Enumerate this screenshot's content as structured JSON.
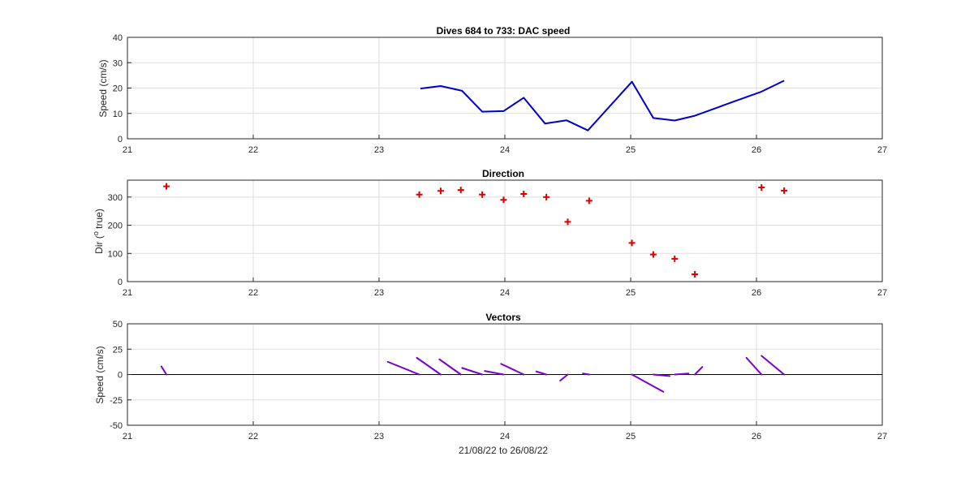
{
  "chart_data": [
    {
      "type": "line",
      "title": "Dives 684 to 733: DAC speed",
      "xlabel": "",
      "ylabel": "Speed (cm/s)",
      "xlim": [
        21,
        27
      ],
      "ylim": [
        0,
        40
      ],
      "xticks": [
        21,
        22,
        23,
        24,
        25,
        26,
        27
      ],
      "yticks": [
        0,
        10,
        20,
        30,
        40
      ],
      "grid": true,
      "color": "#0000cc",
      "series": [
        {
          "x": [
            23.33,
            23.49,
            23.66,
            23.82,
            23.99,
            24.15,
            24.32,
            24.49,
            24.66,
            25.01,
            25.18,
            25.35,
            25.51,
            25.81,
            26.04,
            26.22
          ],
          "y": [
            19.8,
            20.8,
            18.9,
            10.7,
            10.9,
            16.2,
            6.0,
            7.3,
            3.3,
            22.5,
            8.2,
            7.2,
            9.1,
            14.5,
            18.6,
            22.9
          ]
        }
      ]
    },
    {
      "type": "scatter",
      "title": "Direction",
      "xlabel": "",
      "ylabel": "Dir (",
      "ylabel_sup": "o",
      "ylabel_tail": " true)",
      "xlim": [
        21,
        27
      ],
      "ylim": [
        0,
        360
      ],
      "xticks": [
        21,
        22,
        23,
        24,
        25,
        26,
        27
      ],
      "yticks": [
        0,
        100,
        200,
        300
      ],
      "grid": true,
      "marker": "+",
      "color": "#dd0000",
      "series": [
        {
          "x": [
            21.31,
            23.32,
            23.49,
            23.65,
            23.82,
            23.99,
            24.15,
            24.33,
            24.5,
            24.67,
            25.01,
            25.18,
            25.35,
            25.51,
            26.04,
            26.22
          ],
          "y": [
            338,
            309,
            322,
            325,
            309,
            290,
            311,
            300,
            212,
            287,
            137,
            96,
            81,
            26,
            334,
            323
          ]
        }
      ]
    },
    {
      "type": "vector",
      "title": "Vectors",
      "xlabel": "21/08/22 to 26/08/22",
      "ylabel": "Speed (cm/s)",
      "xlim": [
        21,
        27
      ],
      "ylim": [
        -50,
        50
      ],
      "xticks": [
        21,
        22,
        23,
        24,
        25,
        26,
        27
      ],
      "yticks": [
        -50,
        -25,
        0,
        25,
        50
      ],
      "grid": true,
      "color": "#7a00cc",
      "zero_line": true,
      "vectors": [
        {
          "x": [
            21.31,
            21.27
          ],
          "y": [
            0,
            8
          ]
        },
        {
          "x": [
            23.32,
            23.07
          ],
          "y": [
            0,
            12.5
          ]
        },
        {
          "x": [
            23.49,
            23.3
          ],
          "y": [
            0,
            16.5
          ]
        },
        {
          "x": [
            23.65,
            23.48
          ],
          "y": [
            0,
            15.0
          ]
        },
        {
          "x": [
            23.82,
            23.66
          ],
          "y": [
            0,
            6.5
          ]
        },
        {
          "x": [
            23.99,
            23.84
          ],
          "y": [
            0,
            3.5
          ]
        },
        {
          "x": [
            24.15,
            23.97
          ],
          "y": [
            0,
            10.5
          ]
        },
        {
          "x": [
            24.33,
            24.25
          ],
          "y": [
            0,
            3.0
          ]
        },
        {
          "x": [
            24.5,
            24.44
          ],
          "y": [
            0,
            -6.0
          ]
        },
        {
          "x": [
            24.67,
            24.62
          ],
          "y": [
            0,
            1.0
          ]
        },
        {
          "x": [
            25.01,
            25.26
          ],
          "y": [
            0,
            -17.0
          ]
        },
        {
          "x": [
            25.18,
            25.31
          ],
          "y": [
            0,
            -1.5
          ]
        },
        {
          "x": [
            25.35,
            25.46
          ],
          "y": [
            0,
            1.0
          ]
        },
        {
          "x": [
            25.51,
            25.57
          ],
          "y": [
            0,
            7.5
          ]
        },
        {
          "x": [
            26.04,
            25.92
          ],
          "y": [
            0,
            16.5
          ]
        },
        {
          "x": [
            26.22,
            26.04
          ],
          "y": [
            0,
            18.5
          ]
        }
      ]
    }
  ]
}
